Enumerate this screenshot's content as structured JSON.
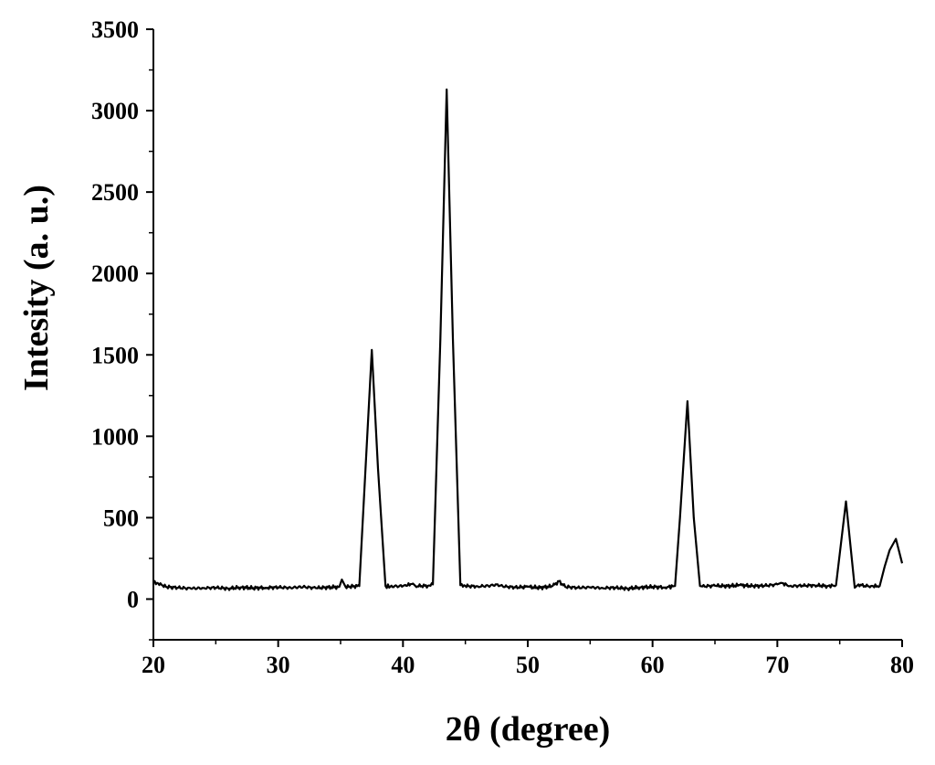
{
  "chart_data": {
    "type": "line",
    "title": "",
    "xlabel": "2θ (degree)",
    "ylabel": "Intesity (a. u.)",
    "xlim": [
      20,
      80
    ],
    "ylim": [
      -250,
      3500
    ],
    "xticks": [
      20,
      30,
      40,
      50,
      60,
      70,
      80
    ],
    "yticks": [
      0,
      500,
      1000,
      1500,
      2000,
      2500,
      3000,
      3500
    ],
    "grid": false,
    "legend": "none",
    "series": [
      {
        "color": "#000000",
        "x": [
          20.0,
          20.3,
          21.0,
          22.0,
          23.0,
          24.0,
          25.0,
          26.0,
          27.0,
          28.0,
          29.0,
          30.0,
          31.0,
          32.0,
          33.0,
          34.0,
          34.9,
          35.1,
          35.4,
          36.0,
          36.5,
          37.0,
          37.5,
          38.0,
          38.6,
          39.0,
          40.0,
          40.8,
          41.0,
          42.0,
          42.4,
          43.0,
          43.5,
          44.0,
          44.6,
          45.0,
          46.0,
          47.0,
          47.5,
          48.0,
          49.0,
          50.0,
          51.0,
          52.0,
          52.5,
          53.0,
          54.0,
          55.0,
          56.0,
          57.0,
          58.0,
          59.0,
          60.0,
          61.0,
          61.8,
          62.2,
          62.8,
          63.3,
          63.8,
          64.0,
          65.0,
          66.0,
          67.0,
          68.0,
          69.0,
          70.0,
          70.3,
          71.0,
          72.0,
          73.0,
          74.0,
          74.7,
          75.5,
          76.2,
          76.5,
          77.0,
          77.5,
          78.2,
          78.6,
          79.0,
          79.5,
          80.0
        ],
        "y": [
          100,
          100,
          75,
          70,
          65,
          68,
          70,
          65,
          72,
          68,
          70,
          72,
          70,
          75,
          68,
          72,
          75,
          120,
          75,
          78,
          80,
          800,
          1530,
          800,
          80,
          78,
          80,
          95,
          80,
          82,
          90,
          1600,
          3130,
          1600,
          85,
          80,
          78,
          82,
          90,
          78,
          72,
          75,
          70,
          80,
          110,
          75,
          70,
          72,
          68,
          70,
          65,
          72,
          75,
          72,
          80,
          500,
          1215,
          500,
          80,
          78,
          82,
          80,
          85,
          80,
          82,
          90,
          100,
          80,
          82,
          85,
          80,
          85,
          600,
          70,
          90,
          80,
          80,
          80,
          200,
          300,
          370,
          220
        ]
      }
    ]
  }
}
